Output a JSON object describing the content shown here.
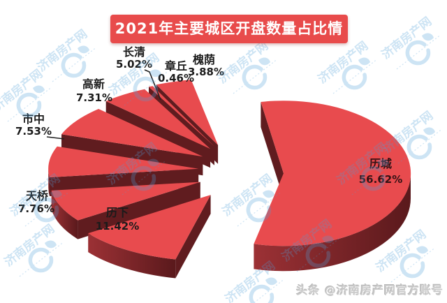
{
  "title": {
    "text": "2021年主要城区开盘数量占比情况"
  },
  "chart_data": {
    "type": "pie",
    "style": "3d_exploded",
    "title": "2021年主要城区开盘数量占比情况",
    "legend_position": "none",
    "labels_on_chart": true,
    "unit": "%",
    "slices": [
      {
        "label": "槐荫",
        "value": 3.88,
        "display": "3.88%"
      },
      {
        "label": "章丘",
        "value": 0.46,
        "display": "0.46%"
      },
      {
        "label": "长清",
        "value": 5.02,
        "display": "5.02%"
      },
      {
        "label": "高新",
        "value": 7.31,
        "display": "7.31%"
      },
      {
        "label": "市中",
        "value": 7.53,
        "display": "7.53%"
      },
      {
        "label": "天桥",
        "value": 7.76,
        "display": "7.76%"
      },
      {
        "label": "历下",
        "value": 11.42,
        "display": "11.42%"
      },
      {
        "label": "历城",
        "value": 56.62,
        "display": "56.62%"
      }
    ],
    "colors": {
      "slice_top": "#e84b4e",
      "slice_side_light": "#9c3135",
      "slice_side_dark": "#5a191c",
      "wedge_wall": "#601c1f",
      "label_text": "#1b1b1b",
      "major_label_text": "#331114",
      "title_bg": "#e84b4b",
      "title_text": "#ffffff"
    }
  },
  "watermark": {
    "brand": "济南房产网",
    "color": "#4f9fd8"
  },
  "badge": {
    "text": "头条 @济南房产网官方账号",
    "color": "#c9c9c9"
  }
}
